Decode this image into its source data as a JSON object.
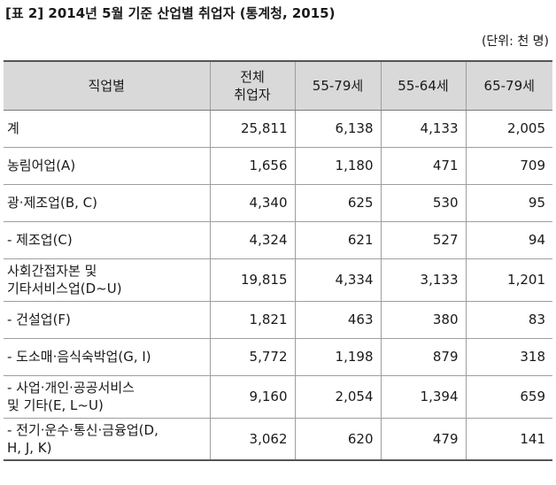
{
  "title": "[표 2] 2014년 5월 기준 산업별 취업자 (통계청, 2015)",
  "unit": "(단위: 천 명)",
  "headers": [
    "직업별",
    "전체\n취업자",
    "55-79세",
    "55-64세",
    "65-79세"
  ],
  "rows": [
    [
      "계",
      "25,811",
      "6,138",
      "4,133",
      "2,005"
    ],
    [
      "농림어업(A)",
      "1,656",
      "1,180",
      "471",
      "709"
    ],
    [
      "광·제조업(B, C)",
      "4,340",
      "625",
      "530",
      "95"
    ],
    [
      "- 제조업(C)",
      "4,324",
      "621",
      "527",
      "94"
    ],
    [
      "사회간접자본 및\n기타서비스업(D~U)",
      "19,815",
      "4,334",
      "3,133",
      "1,201"
    ],
    [
      "- 건설업(F)",
      "1,821",
      "463",
      "380",
      "83"
    ],
    [
      "- 도소매·음식숙박업(G, I)",
      "5,772",
      "1,198",
      "879",
      "318"
    ],
    [
      "- 사업·개인·공공서비스\n및 기타(E, L~U)",
      "9,160",
      "2,054",
      "1,394",
      "659"
    ],
    [
      "- 전기·운수·통신·금융업(D,\nH, J, K)",
      "3,062",
      "620",
      "479",
      "141"
    ]
  ]
}
